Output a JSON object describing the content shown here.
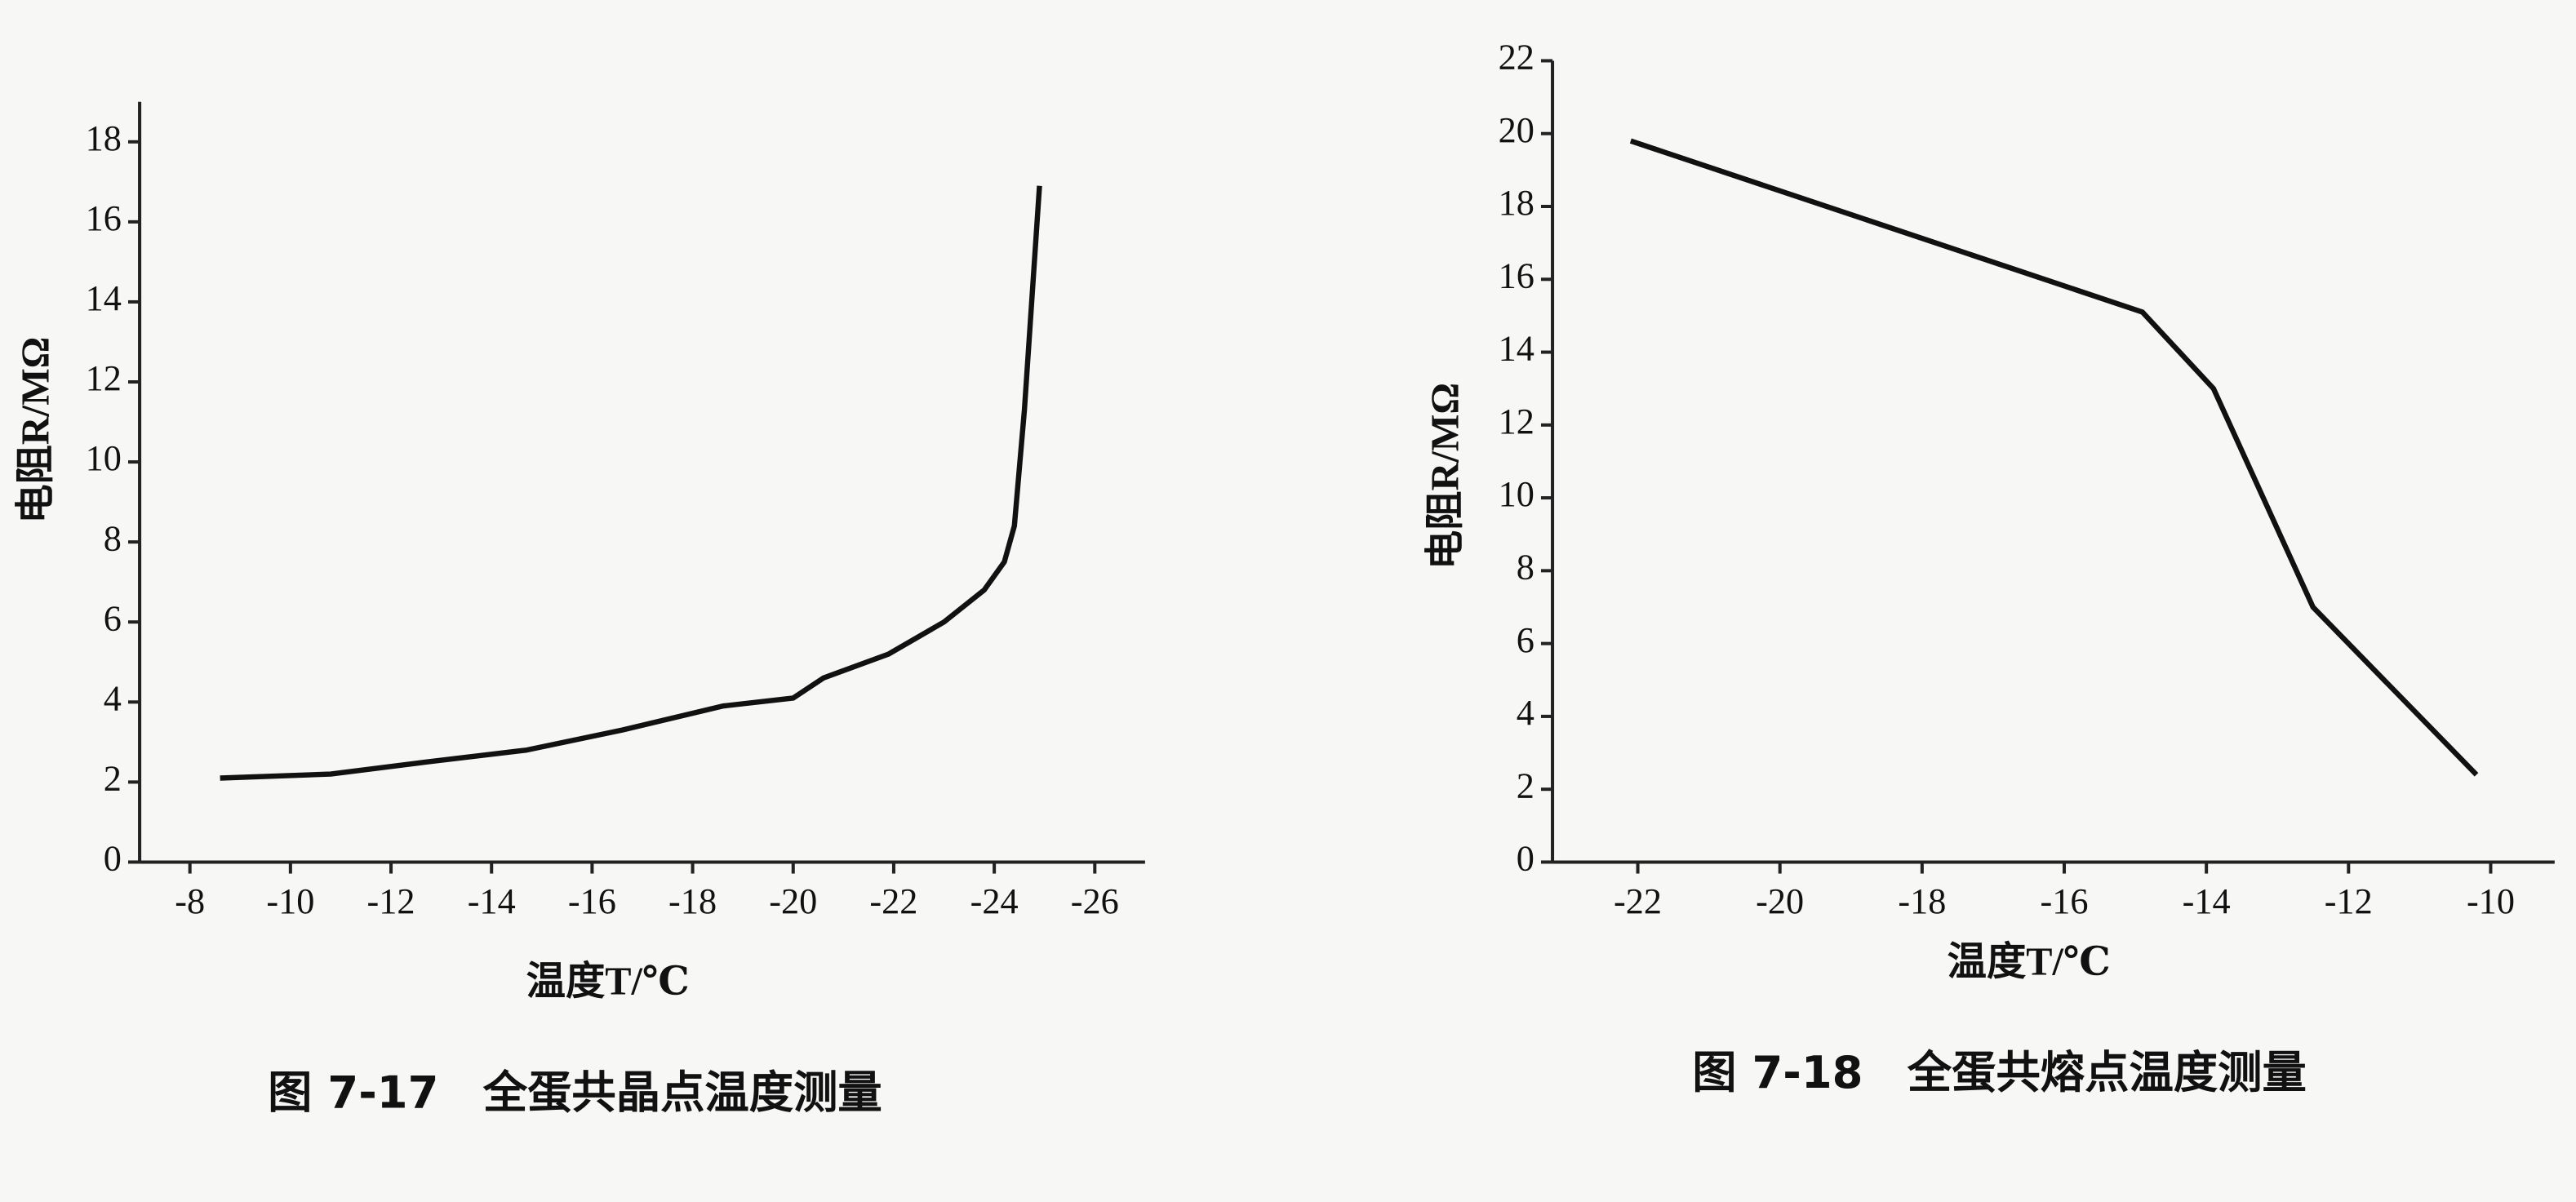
{
  "chart_data": [
    {
      "type": "line",
      "title": "图 7-17　全蛋共晶点温度测量",
      "xlabel": "温度T/℃",
      "ylabel": "电阻R/MΩ",
      "x": [
        -8.6,
        -10.8,
        -12.7,
        -14.7,
        -16.6,
        -18.6,
        -20.0,
        -20.6,
        -21.9,
        -23.0,
        -23.8,
        -24.2,
        -24.4,
        -24.6,
        -24.9
      ],
      "values": [
        2.1,
        2.2,
        2.5,
        2.8,
        3.3,
        3.9,
        4.1,
        4.6,
        5.2,
        6.0,
        6.8,
        7.5,
        8.4,
        11.3,
        16.9
      ],
      "color": "#111111",
      "xlim": [
        -7,
        -27
      ],
      "xticks": [
        -8,
        -10,
        -12,
        -14,
        -16,
        -18,
        -20,
        -22,
        -24,
        -26
      ],
      "ylim": [
        0,
        19
      ],
      "yticks": [
        0,
        2,
        4,
        6,
        8,
        10,
        12,
        14,
        16,
        18
      ]
    },
    {
      "type": "line",
      "title": "图 7-18　全蛋共熔点温度测量",
      "xlabel": "温度T/℃",
      "ylabel": "电阻R/MΩ",
      "x": [
        -22.1,
        -14.9,
        -13.9,
        -12.5,
        -10.2
      ],
      "values": [
        19.8,
        15.1,
        13.0,
        7.0,
        2.4
      ],
      "color": "#111111",
      "xlim": [
        -23.2,
        -9.1
      ],
      "xticks": [
        -22,
        -20,
        -18,
        -16,
        -14,
        -12,
        -10
      ],
      "ylim": [
        0,
        22
      ],
      "yticks": [
        0,
        2,
        4,
        6,
        8,
        10,
        12,
        14,
        16,
        18,
        20,
        22
      ]
    }
  ]
}
